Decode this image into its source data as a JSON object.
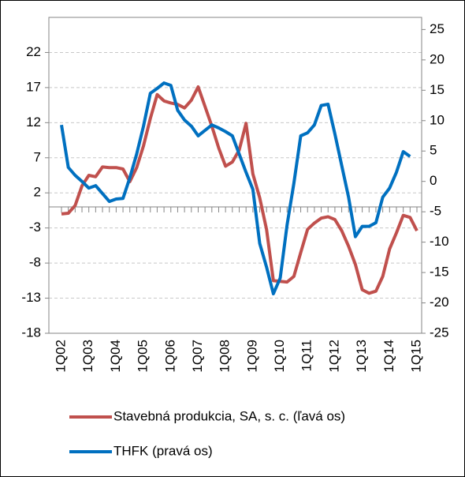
{
  "chart_data": {
    "type": "line",
    "categories": [
      "1Q02",
      null,
      null,
      null,
      "1Q03",
      null,
      null,
      null,
      "1Q04",
      null,
      null,
      null,
      "1Q05",
      null,
      null,
      null,
      "1Q06",
      null,
      null,
      null,
      "1Q07",
      null,
      null,
      null,
      "1Q08",
      null,
      null,
      null,
      "1Q09",
      null,
      null,
      null,
      "1Q10",
      null,
      null,
      null,
      "1Q11",
      null,
      null,
      null,
      "1Q12",
      null,
      null,
      null,
      "1Q13",
      null,
      null,
      null,
      "1Q14",
      null,
      null,
      null,
      "1Q15"
    ],
    "series": [
      {
        "name": "Stavebná produkcia, SA, s. c. (ľavá os)",
        "color": "#c0504d",
        "axis": "y",
        "values": [
          -1.0,
          -0.9,
          0.2,
          3.0,
          4.5,
          4.3,
          5.7,
          5.6,
          5.6,
          5.4,
          3.6,
          5.6,
          8.7,
          12.6,
          16.0,
          15.1,
          14.8,
          14.6,
          14.1,
          15.2,
          17.1,
          14.3,
          11.5,
          8.4,
          5.8,
          6.4,
          8.1,
          11.9,
          4.7,
          1.3,
          -3.2,
          -10.5,
          -10.6,
          -10.7,
          -9.9,
          -6.5,
          -3.2,
          -2.3,
          -1.6,
          -1.4,
          -1.8,
          -3.4,
          -5.6,
          -8.2,
          -11.8,
          -12.3,
          -12.0,
          -9.9,
          -6.0,
          -3.7,
          -1.2,
          -1.5,
          -3.4
        ]
      },
      {
        "name": "THFK (pravá os)",
        "color": "#0070c0",
        "axis": "y2",
        "values": [
          9.3,
          2.3,
          1.0,
          0.0,
          -1.1,
          -0.7,
          -2.0,
          -3.3,
          -2.9,
          -2.8,
          0.6,
          4.5,
          9.1,
          14.5,
          15.3,
          16.2,
          15.8,
          11.7,
          10.1,
          9.1,
          7.5,
          8.4,
          9.3,
          8.8,
          8.2,
          7.5,
          4.5,
          1.5,
          -1.3,
          -10.2,
          -14.1,
          -18.5,
          -15.9,
          -7.2,
          -0.3,
          7.5,
          8.0,
          9.3,
          12.5,
          12.7,
          7.8,
          2.6,
          -2.6,
          -9.1,
          -7.4,
          -7.4,
          -6.8,
          -2.6,
          -1.1,
          1.5,
          4.9,
          4.1,
          null
        ]
      }
    ],
    "ylim": [
      -18,
      27
    ],
    "yticks": [
      -18,
      -13,
      -8,
      -3,
      2,
      7,
      12,
      17,
      22
    ],
    "y2lim": [
      -25,
      27
    ],
    "y2ticks": [
      -25,
      -20,
      -15,
      -10,
      -5,
      0,
      5,
      10,
      15,
      20,
      25
    ],
    "grid": true,
    "legend": "bottom"
  }
}
